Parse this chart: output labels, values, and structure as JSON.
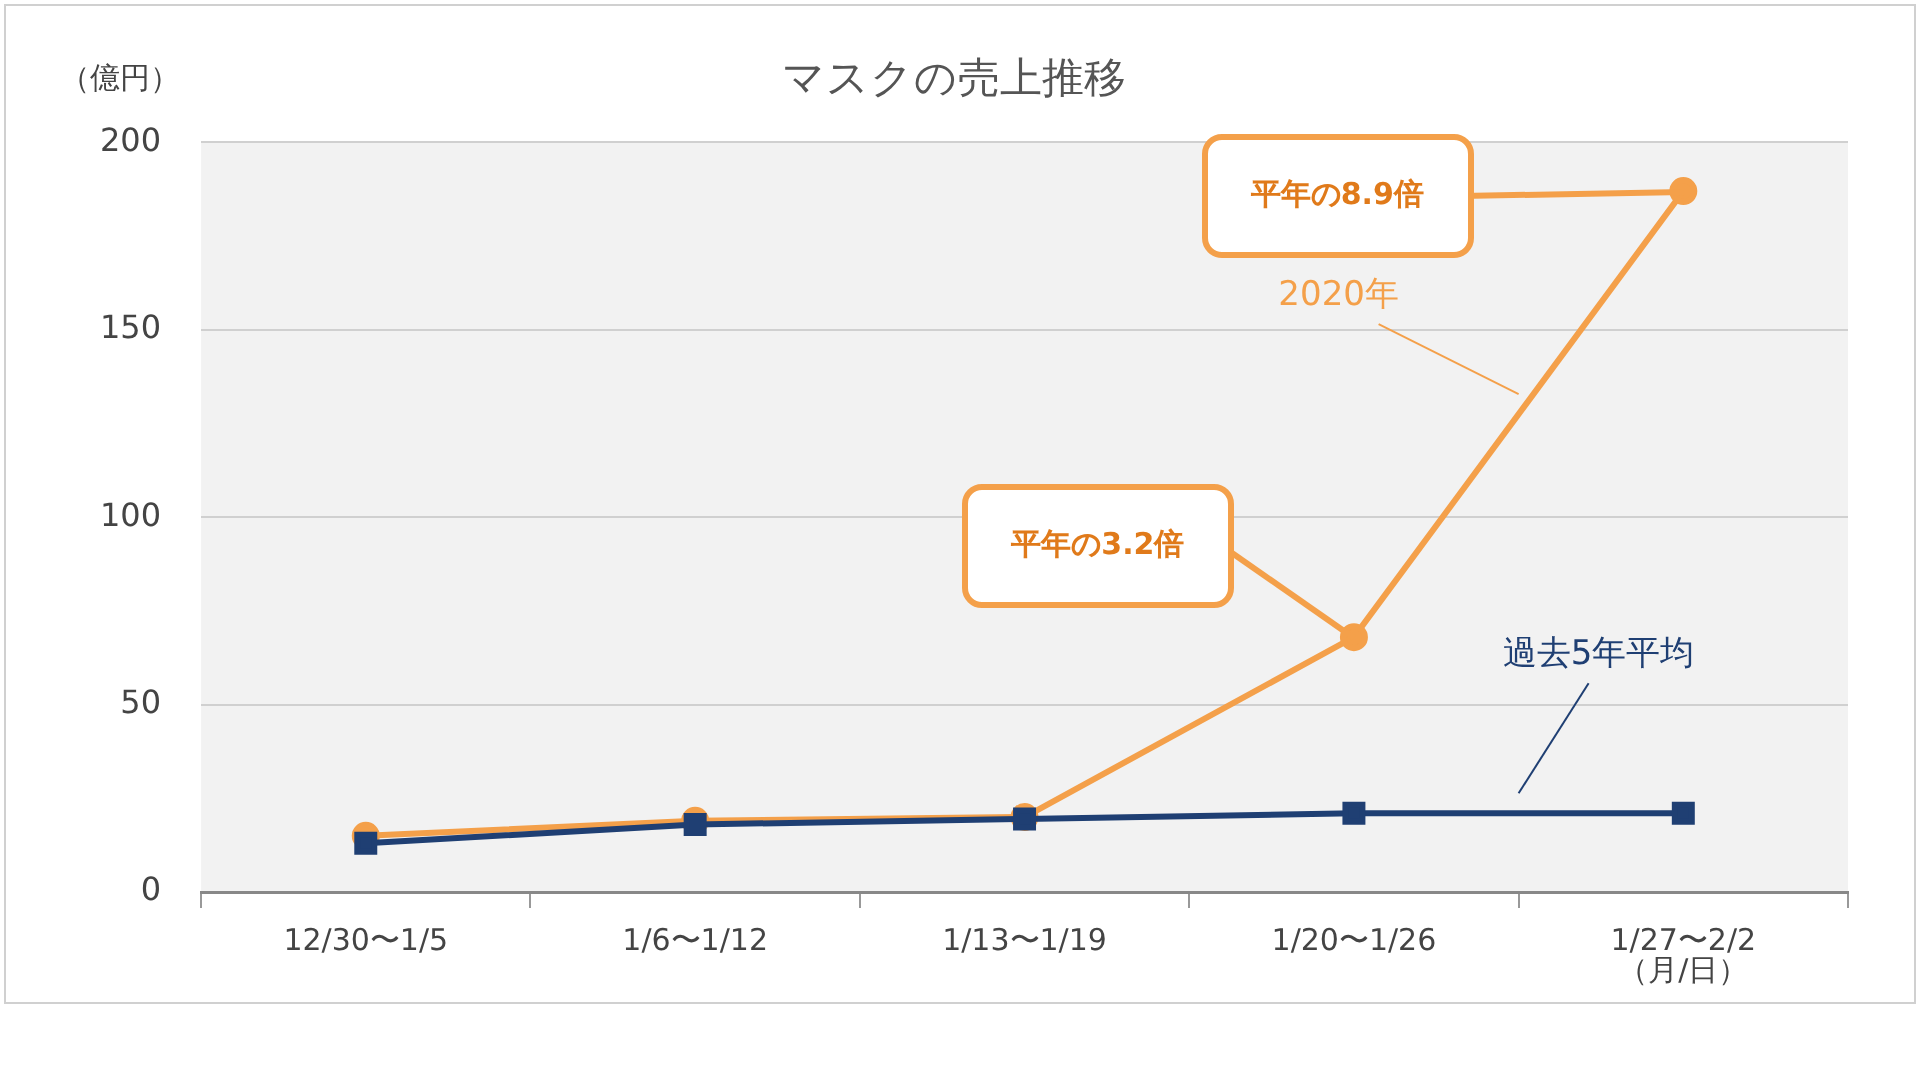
{
  "chart_data": {
    "type": "line",
    "title": "マスクの売上推移",
    "ylabel": "（億円）",
    "xlabel": "（月/日）",
    "categories": [
      "12/30〜1/5",
      "1/6〜1/12",
      "1/13〜1/19",
      "1/20〜1/26",
      "1/27〜2/2"
    ],
    "series": [
      {
        "name": "2020年",
        "color": "#f4a04a",
        "marker": "circle",
        "values": [
          15,
          19,
          20,
          68,
          187
        ]
      },
      {
        "name": "過去5年平均",
        "color": "#1f3f73",
        "marker": "square",
        "values": [
          13,
          18,
          19.5,
          21,
          21
        ]
      }
    ],
    "ylim": [
      0,
      200
    ],
    "yticks": [
      0,
      50,
      100,
      150,
      200
    ],
    "grid": "y",
    "legend": false,
    "annotations": [
      {
        "text": "平年の3.2倍",
        "x": "1/20〜1/26",
        "y": 68
      },
      {
        "text": "平年の8.9倍",
        "x": "1/27〜2/2",
        "y": 187
      }
    ]
  }
}
